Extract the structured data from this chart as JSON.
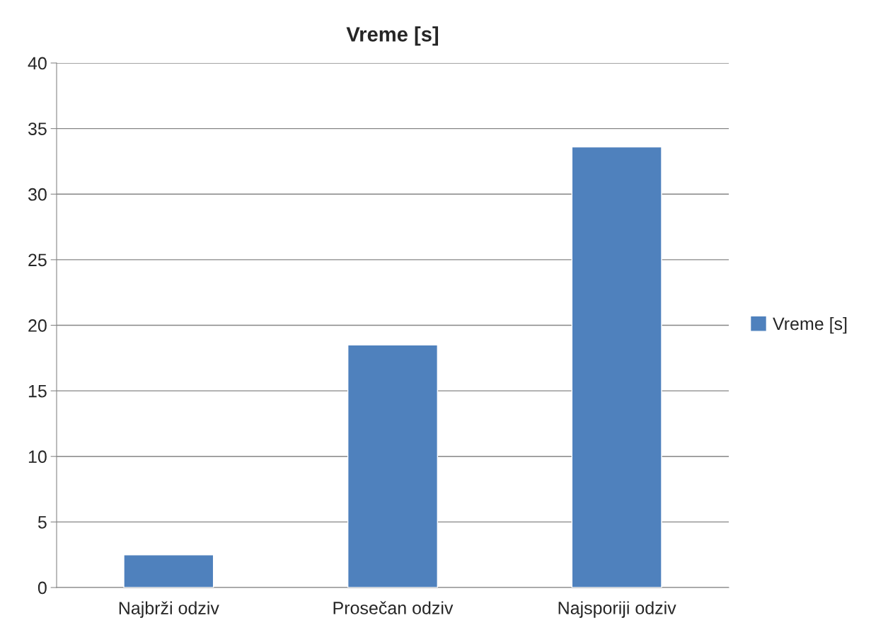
{
  "chart_data": {
    "type": "bar",
    "title": "Vreme [s]",
    "categories": [
      "Najbrži odziv",
      "Prosečan odziv",
      "Najsporiji odziv"
    ],
    "series": [
      {
        "name": "Vreme [s]",
        "color": "#4f81bd",
        "values": [
          2.5,
          18.5,
          33.6
        ]
      }
    ],
    "ylim": [
      0,
      40
    ],
    "yticks": [
      0,
      5,
      10,
      15,
      20,
      25,
      30,
      35,
      40
    ],
    "grid": "y",
    "legend": "right"
  }
}
